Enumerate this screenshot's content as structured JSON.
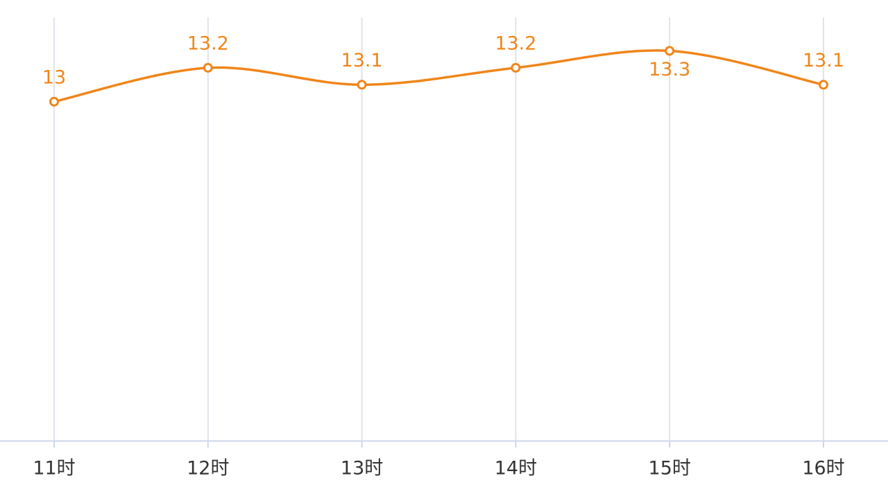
{
  "chart_data": {
    "type": "line",
    "categories": [
      "11时",
      "12时",
      "13时",
      "14时",
      "15时",
      "16时"
    ],
    "series": [
      {
        "color": "#f08519",
        "values": [
          13,
          13.2,
          13.1,
          13.2,
          13.3,
          13.1
        ]
      }
    ],
    "ylim": [
      11,
      13.6
    ],
    "grid": true
  }
}
